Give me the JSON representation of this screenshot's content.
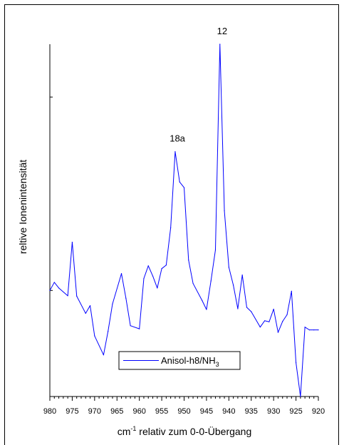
{
  "chart_data": {
    "type": "line",
    "x_reversed": true,
    "xlim": [
      980,
      920
    ],
    "ylim": [
      0,
      1
    ],
    "xlabel_pre": "cm",
    "xlabel_sup": "-1",
    "xlabel_post": " relativ zum 0-0-Übergang",
    "ylabel": "reltive Ionenintensität",
    "x_ticks": [
      980,
      975,
      970,
      965,
      960,
      955,
      950,
      945,
      940,
      935,
      930,
      925,
      920
    ],
    "y_ticks": [
      0.301,
      0.85
    ],
    "grid": false,
    "legend_position": "bottom-center",
    "series": [
      {
        "name_main": "Anisol-h8/NH",
        "name_sub": "3",
        "color": "#0000ff",
        "x": [
          980.0,
          979.0,
          978.0,
          976.0,
          975.0,
          974.0,
          972.0,
          971.0,
          970.0,
          968.0,
          967.0,
          966.0,
          964.0,
          963.0,
          962.0,
          960.0,
          959.0,
          958.0,
          957.0,
          956.0,
          955.0,
          954.0,
          953.0,
          952.0,
          951.0,
          950.0,
          949.0,
          948.0,
          946.0,
          945.0,
          944.0,
          943.0,
          942.0,
          941.0,
          940.0,
          939.0,
          938.0,
          937.0,
          936.0,
          935.0,
          933.0,
          932.0,
          931.0,
          930.0,
          929.0,
          928.0,
          927.0,
          926.0,
          925.0,
          924.0,
          923.0,
          922.0,
          921.0,
          920.0
        ],
        "y": [
          0.301,
          0.324,
          0.308,
          0.286,
          0.438,
          0.285,
          0.236,
          0.258,
          0.172,
          0.118,
          0.185,
          0.263,
          0.349,
          0.279,
          0.201,
          0.192,
          0.335,
          0.371,
          0.342,
          0.308,
          0.363,
          0.373,
          0.479,
          0.695,
          0.609,
          0.593,
          0.387,
          0.321,
          0.273,
          0.247,
          0.328,
          0.416,
          1.0,
          0.527,
          0.367,
          0.316,
          0.249,
          0.345,
          0.253,
          0.241,
          0.197,
          0.215,
          0.212,
          0.248,
          0.182,
          0.213,
          0.232,
          0.299,
          0.096,
          0.0,
          0.197,
          0.189,
          0.189,
          0.189
        ]
      }
    ],
    "annotations": [
      {
        "text": "18a",
        "x": 951.5,
        "y": 0.695
      },
      {
        "text": "12",
        "x": 941.5,
        "y": 1.0
      }
    ]
  }
}
